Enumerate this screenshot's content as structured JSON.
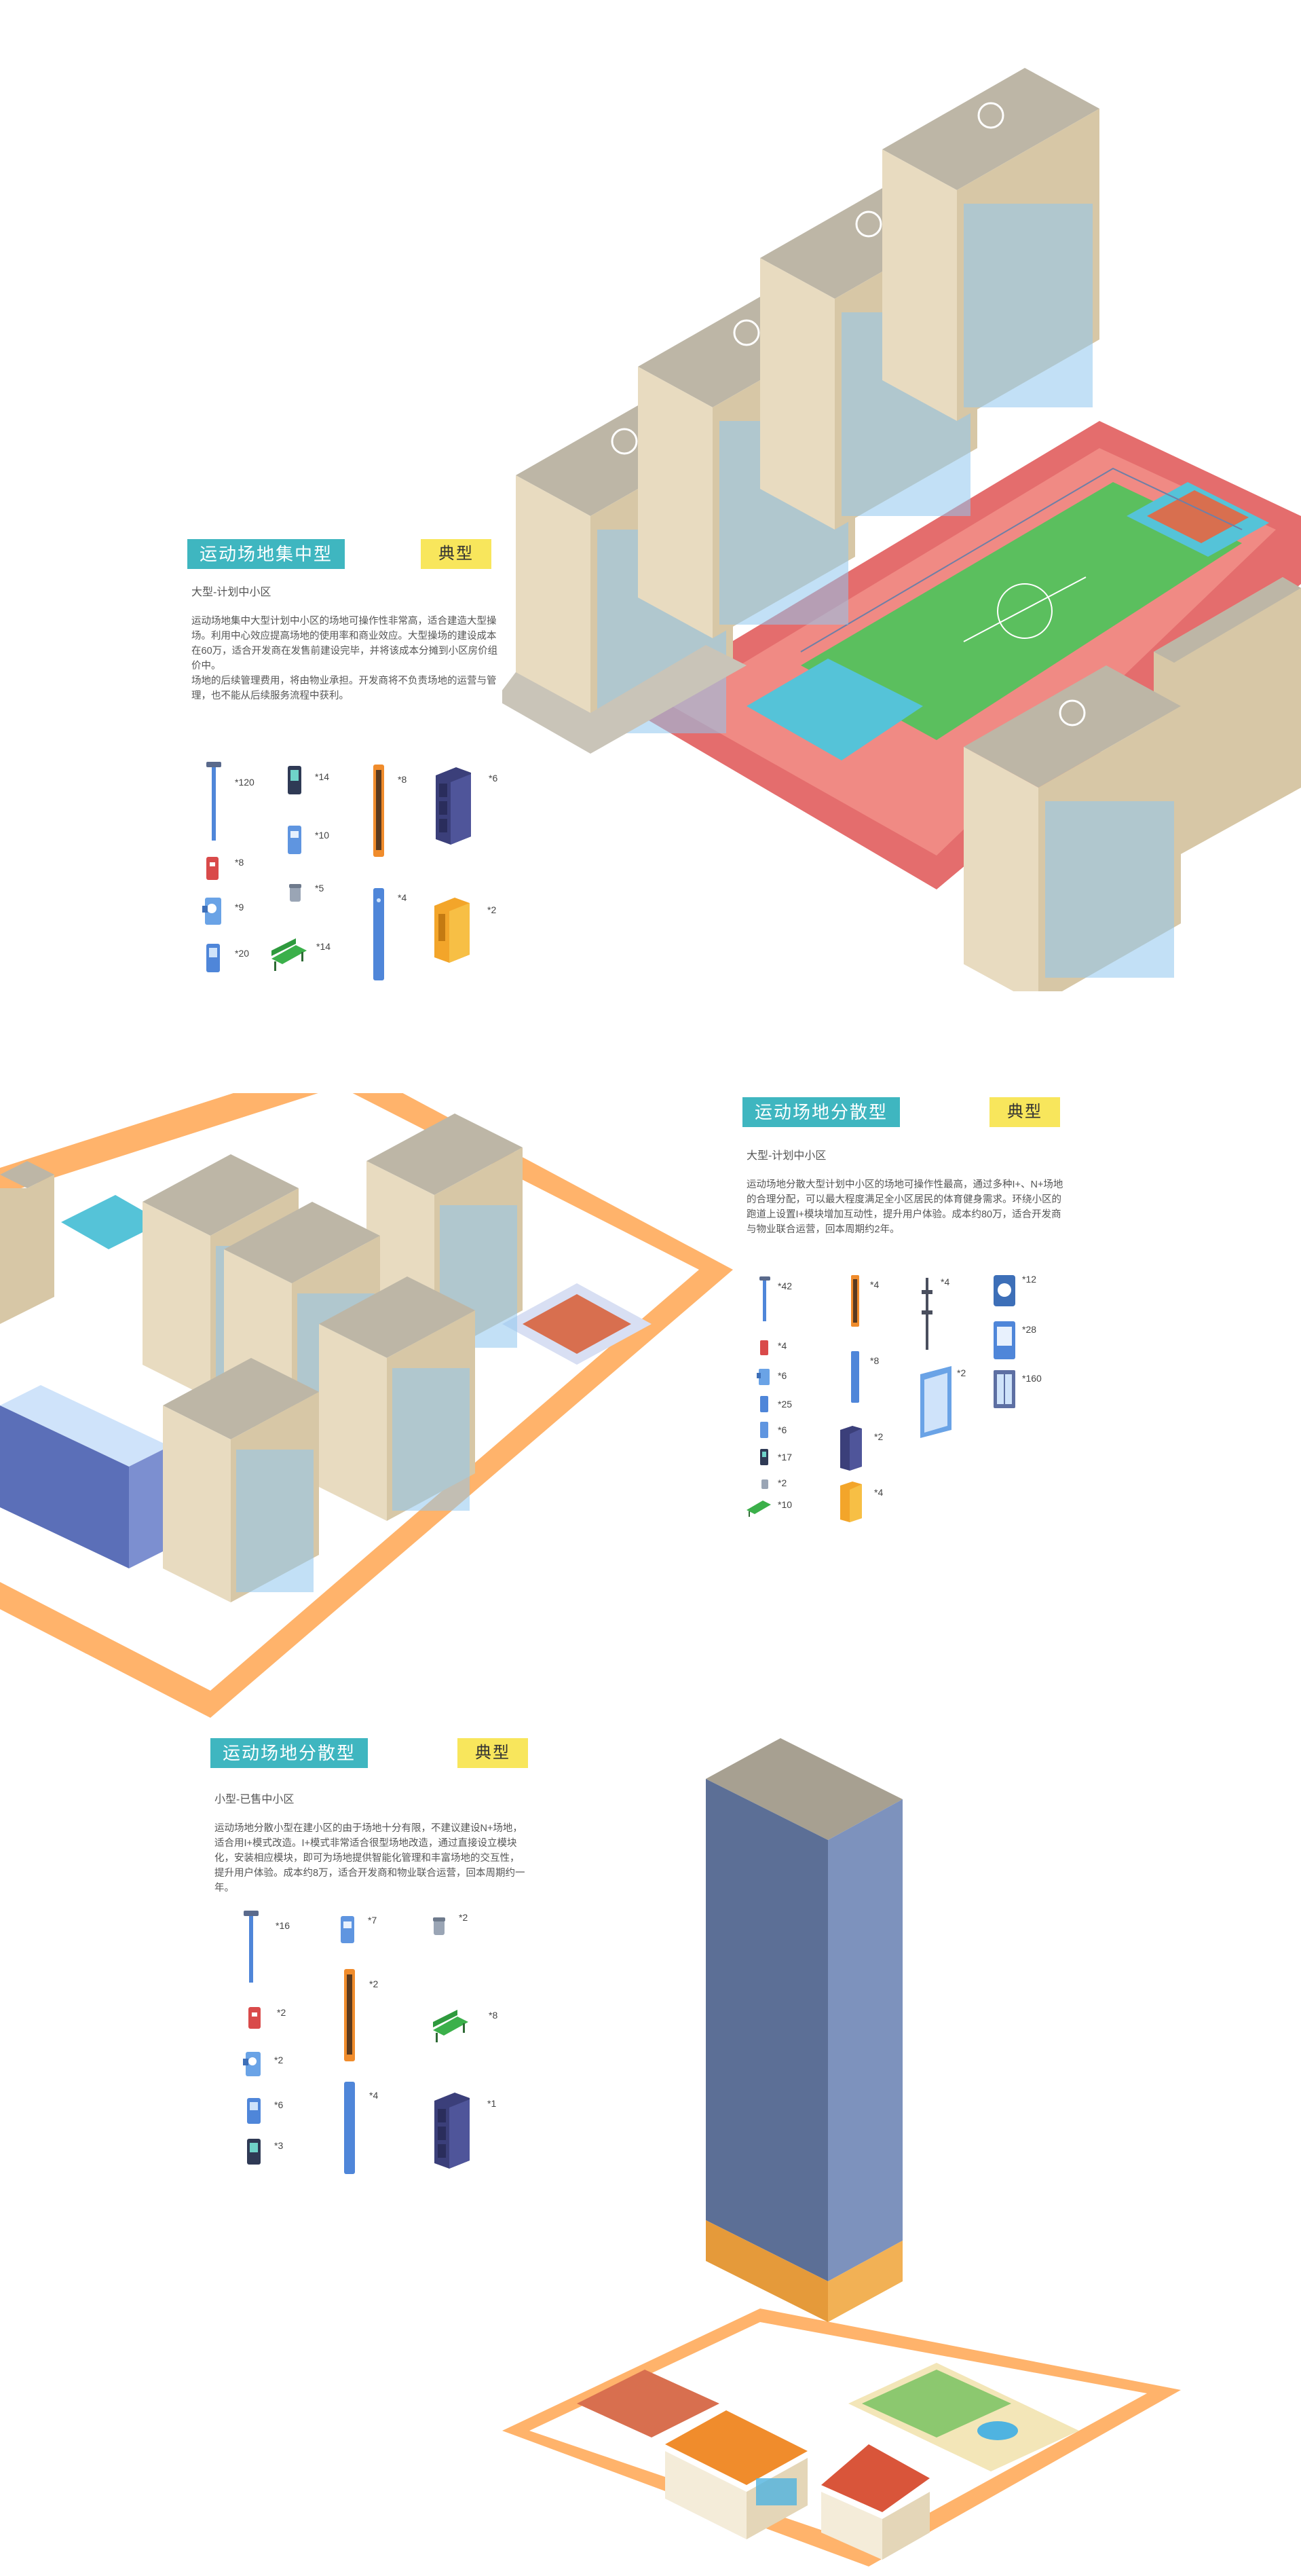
{
  "sections": [
    {
      "title": "运动场地集中型",
      "tag": "典型",
      "subtitle": "大型-计划中小区",
      "description": [
        "运动场地集中大型计划中小区的场地可操作性非常高，适合建造大型操场。利用中心效应提高场地的使用率和商业效应。大型操场的建设成本在60万，适合开发商在发售前建设完毕，并将该成本分摊到小区房价组价中。",
        "场地的后续管理费用，将由物业承担。开发商将不负责场地的运营与管理，也不能从后续服务流程中获利。"
      ],
      "equipment": [
        {
          "icon": "street-lamp-icon",
          "qty": "*120"
        },
        {
          "icon": "fire-extinguisher-icon",
          "qty": "*8"
        },
        {
          "icon": "wall-camera-icon",
          "qty": "*9"
        },
        {
          "icon": "info-panel-icon",
          "qty": "*20"
        },
        {
          "icon": "smart-terminal-icon",
          "qty": "*14"
        },
        {
          "icon": "ticket-gate-icon",
          "qty": "*10"
        },
        {
          "icon": "trash-bin-icon",
          "qty": "*5"
        },
        {
          "icon": "park-bench-icon",
          "qty": "*14"
        },
        {
          "icon": "fitness-pillar-icon",
          "qty": "*8"
        },
        {
          "icon": "sign-post-icon",
          "qty": "*4"
        },
        {
          "icon": "storage-locker-icon",
          "qty": "*6"
        },
        {
          "icon": "vending-machine-icon",
          "qty": "*2"
        }
      ]
    },
    {
      "title": "运动场地分散型",
      "tag": "典型",
      "subtitle": "大型-计划中小区",
      "description": [
        "运动场地分散大型计划中小区的场地可操作性最高，通过多种I+、N+场地的合理分配，可以最大程度满足全小区居民的体育健身需求。环绕小区的跑道上设置I+模块增加互动性，提升用户体验。成本约80万，适合开发商与物业联合运营，回本周期约2年。"
      ],
      "equipment": [
        {
          "icon": "street-lamp-icon",
          "qty": "*42"
        },
        {
          "icon": "fire-extinguisher-icon",
          "qty": "*4"
        },
        {
          "icon": "wall-camera-icon",
          "qty": "*6"
        },
        {
          "icon": "info-panel-icon",
          "qty": "*25"
        },
        {
          "icon": "ticket-gate-icon",
          "qty": "*6"
        },
        {
          "icon": "smart-terminal-icon",
          "qty": "*17"
        },
        {
          "icon": "trash-bin-icon",
          "qty": "*2"
        },
        {
          "icon": "park-bench-icon",
          "qty": "*10"
        },
        {
          "icon": "fitness-pillar-icon",
          "qty": "*4"
        },
        {
          "icon": "sign-post-icon",
          "qty": "*8"
        },
        {
          "icon": "storage-locker-icon",
          "qty": "*2"
        },
        {
          "icon": "vending-machine-icon",
          "qty": "*4"
        },
        {
          "icon": "antenna-pole-icon",
          "qty": "*4"
        },
        {
          "icon": "glass-door-icon",
          "qty": "*2"
        },
        {
          "icon": "round-screen-icon",
          "qty": "*12"
        },
        {
          "icon": "tablet-kiosk-icon",
          "qty": "*28"
        },
        {
          "icon": "fence-panel-icon",
          "qty": "*160"
        }
      ]
    },
    {
      "title": "运动场地分散型",
      "tag": "典型",
      "subtitle": "小型-已售中小区",
      "description": [
        "运动场地分散小型在建小区的由于场地十分有限，不建议建设N+场地，适合用I+模式改造。I+模式非常适合很型场地改造，通过直接设立模块化，安装相应模块，即可为场地提供智能化管理和丰富场地的交互性，提升用户体验。成本约8万，适合开发商和物业联合运营，回本周期约一年。"
      ],
      "equipment": [
        {
          "icon": "street-lamp-icon",
          "qty": "*16"
        },
        {
          "icon": "fire-extinguisher-icon",
          "qty": "*2"
        },
        {
          "icon": "wall-camera-icon",
          "qty": "*2"
        },
        {
          "icon": "info-panel-icon",
          "qty": "*6"
        },
        {
          "icon": "smart-terminal-icon",
          "qty": "*3"
        },
        {
          "icon": "ticket-gate-icon",
          "qty": "*7"
        },
        {
          "icon": "fitness-pillar-icon",
          "qty": "*2"
        },
        {
          "icon": "sign-post-icon",
          "qty": "*4"
        },
        {
          "icon": "trash-bin-icon",
          "qty": "*2"
        },
        {
          "icon": "park-bench-icon",
          "qty": "*8"
        },
        {
          "icon": "storage-locker-icon",
          "qty": "*1"
        }
      ]
    }
  ],
  "colors": {
    "title_bg": "#3fb6c0",
    "tag_bg": "#f8e65c",
    "building_top": "#b9b1a0",
    "building_wall": "#e4d6b8",
    "window": "#8fc7ee",
    "track": "#e46d6d",
    "field": "#5bbf5e",
    "path": "#ffb36b",
    "equipment_blue": "#4f86d9"
  }
}
